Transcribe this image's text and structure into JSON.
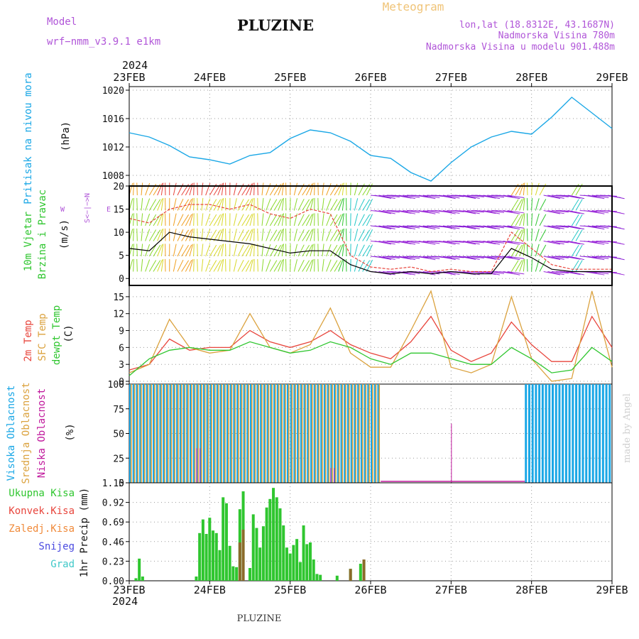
{
  "header": {
    "model_label": "Model",
    "model_name": "wrf−nmm_v3.9.1  e1km",
    "station": "PLUZINE",
    "product": "Meteogram",
    "lonlat": "lon,lat (18.8312E, 43.1687N)",
    "elevation": "Nadmorska Visina 780m",
    "model_elevation": "Nadmorska Visina u modelu 901.488m",
    "year": "2024",
    "footer_station": "PLUZINE",
    "credit": "made by Angel"
  },
  "colors": {
    "pressure": "#1aa7e6",
    "wind_mean": "#000000",
    "wind_gust": "#e8453c",
    "t2m": "#e8453c",
    "sfc": "#dba23e",
    "dewpt": "#2fc62f",
    "cloud_high": "#1aa7e6",
    "cloud_mid": "#dba23e",
    "cloud_low": "#c0189c",
    "precip_total": "#2fc62f",
    "precip_conv": "#8b6a2a",
    "wind_purple": "#8a1fd6",
    "wind_blue": "#2a5fe0"
  },
  "legend": {
    "pressure": "Pritisak na nivou mora",
    "pressure_unit": "(hPa)",
    "wind_l1": "10m Vjetar",
    "wind_l2": "Brzina i Pravac",
    "wind_unit": "(m/s)",
    "compass_ns": "S<−|−>N",
    "compass_e": "E",
    "compass_w": "W",
    "temp_l1": "2m Temp",
    "temp_l2": "SFC Temp",
    "temp_l3": "dewpt Temp",
    "temp_unit": "(C)",
    "cloud_l1": "Visoka Oblacnost",
    "cloud_l2": "Srednja Oblacnost",
    "cloud_l3": "Niska Oblacnost",
    "cloud_unit": "(%)",
    "precip_total": "Ukupna Kisa",
    "precip_conv": "Konvek.Kisa",
    "precip_frz": "Zaledj.Kisa",
    "precip_snow": "Snijeg",
    "precip_grad": "Grad",
    "precip_unit": "1hr Precip (mm)"
  },
  "chart_data": [
    {
      "type": "line",
      "id": "pressure",
      "ylabel": "Pritisak na nivou mora (hPa)",
      "ylim": [
        1006.5,
        1020.5
      ],
      "yticks": [
        1008,
        1012,
        1016,
        1020
      ],
      "xticks": [
        "23FEB",
        "24FEB",
        "25FEB",
        "26FEB",
        "27FEB",
        "28FEB",
        "29FEB"
      ],
      "x_hours": [
        0,
        6,
        12,
        18,
        24,
        30,
        36,
        42,
        48,
        54,
        60,
        66,
        72,
        78,
        84,
        90,
        96,
        102,
        108,
        114,
        120,
        126,
        132,
        138,
        144
      ],
      "series": [
        {
          "values": [
            1014.0,
            1013.4,
            1012.2,
            1010.6,
            1010.2,
            1009.6,
            1010.8,
            1011.2,
            1013.2,
            1014.4,
            1014.0,
            1012.8,
            1010.8,
            1010.4,
            1008.4,
            1007.2,
            1009.8,
            1012.0,
            1013.4,
            1014.2,
            1013.8,
            1016.2,
            1019.0,
            1016.8,
            1014.6
          ]
        }
      ],
      "grid": true
    },
    {
      "type": "line",
      "id": "wind",
      "ylabel": "10m Vjetar Brzina i Pravac (m/s)",
      "ylim": [
        -1.5,
        20
      ],
      "yticks": [
        0,
        5,
        10,
        15,
        20
      ],
      "x_hours": [
        0,
        6,
        12,
        18,
        24,
        30,
        36,
        42,
        48,
        54,
        60,
        66,
        72,
        78,
        84,
        90,
        96,
        102,
        108,
        114,
        120,
        126,
        132,
        138,
        144
      ],
      "series": [
        {
          "name": "mean",
          "values": [
            6.5,
            6,
            10,
            9,
            8.5,
            8,
            7.5,
            6.5,
            5.5,
            6,
            6,
            3,
            1.5,
            1,
            1.5,
            1,
            1.5,
            1,
            1,
            6.5,
            4.5,
            2,
            1.5,
            1.5,
            1.5
          ]
        },
        {
          "name": "gust",
          "values": [
            13,
            12,
            15,
            16,
            16,
            15,
            16,
            14,
            13,
            15,
            14,
            5,
            2.5,
            2,
            2.5,
            1.5,
            2,
            1.5,
            1.5,
            10,
            6.5,
            3,
            2,
            2,
            2
          ]
        }
      ],
      "grid": true
    },
    {
      "type": "line",
      "id": "temperature",
      "ylabel": "Temp (C)",
      "ylim": [
        -0.5,
        17
      ],
      "yticks": [
        0,
        3,
        6,
        9,
        12,
        15
      ],
      "x_hours": [
        0,
        6,
        12,
        18,
        24,
        30,
        36,
        42,
        48,
        54,
        60,
        66,
        72,
        78,
        84,
        90,
        96,
        102,
        108,
        114,
        120,
        126,
        132,
        138,
        144
      ],
      "series": [
        {
          "name": "2m Temp",
          "values": [
            2.0,
            3.0,
            7.5,
            5.5,
            6.0,
            6.0,
            9.0,
            7.0,
            6.0,
            7.0,
            9.0,
            6.5,
            5.0,
            4.0,
            7.0,
            11.5,
            5.5,
            3.5,
            5.0,
            10.5,
            6.5,
            3.5,
            3.5,
            11.5,
            6.0
          ]
        },
        {
          "name": "SFC Temp",
          "values": [
            1.5,
            3.0,
            11.0,
            6.0,
            5.0,
            5.5,
            12.0,
            6.0,
            5.0,
            6.5,
            13.0,
            5.0,
            2.5,
            2.5,
            9.0,
            16.0,
            2.5,
            1.5,
            3.0,
            15.0,
            4.0,
            0.0,
            0.5,
            16.0,
            2.5
          ]
        },
        {
          "name": "dewpt Temp",
          "values": [
            1.0,
            4.0,
            5.5,
            6.0,
            5.5,
            5.5,
            7.0,
            6.0,
            5.0,
            5.5,
            7.0,
            6.0,
            4.0,
            3.0,
            5.0,
            5.0,
            4.0,
            3.0,
            3.0,
            6.0,
            4.0,
            1.5,
            2.0,
            6.0,
            3.5
          ]
        }
      ],
      "grid": true
    },
    {
      "type": "bar",
      "id": "cloud",
      "ylabel": "Oblacnost (%)",
      "ylim": [
        0,
        100
      ],
      "yticks": [
        0,
        25,
        50,
        75,
        100
      ],
      "bars": [
        {
          "name": "Visoka Oblacnost",
          "segments": [
            [
              0,
              30,
              100
            ],
            [
              30,
              75,
              100
            ],
            [
              118,
              144,
              100
            ]
          ]
        },
        {
          "name": "Srednja Oblacnost",
          "segments": [
            [
              0,
              75,
              100
            ]
          ]
        },
        {
          "name": "Niska Oblacnost",
          "segments": [
            [
              20,
              22,
              35
            ],
            [
              60,
              62,
              15
            ],
            [
              96,
              97,
              60
            ]
          ]
        }
      ],
      "grid": true
    },
    {
      "type": "bar",
      "id": "precip",
      "ylabel": "1hr Precip (mm)",
      "ylim": [
        0,
        1.15
      ],
      "yticks": [
        0,
        0.23,
        0.46,
        0.69,
        0.92,
        1.15
      ],
      "x_hours": [
        2,
        3,
        4,
        20,
        21,
        22,
        23,
        24,
        25,
        26,
        27,
        28,
        29,
        30,
        31,
        32,
        33,
        34,
        36,
        37,
        38,
        39,
        40,
        41,
        42,
        43,
        44,
        45,
        46,
        47,
        48,
        49,
        50,
        51,
        52,
        53,
        54,
        55,
        56,
        57,
        62,
        66,
        69,
        70
      ],
      "total": [
        0.03,
        0.26,
        0.05,
        0.05,
        0.56,
        0.72,
        0.55,
        0.74,
        0.59,
        0.56,
        0.36,
        0.98,
        0.91,
        0.41,
        0.17,
        0.16,
        0.84,
        1.05,
        0.15,
        0.78,
        0.62,
        0.39,
        0.64,
        0.86,
        0.96,
        1.09,
        0.98,
        0.85,
        0.65,
        0.39,
        0.32,
        0.42,
        0.49,
        0.22,
        0.65,
        0.43,
        0.45,
        0.25,
        0.08,
        0.07,
        0.06,
        0.14,
        0.2,
        0.25
      ],
      "convective": [
        0,
        0,
        0,
        0,
        0,
        0,
        0,
        0,
        0,
        0,
        0,
        0,
        0,
        0,
        0,
        0,
        0.45,
        0.6,
        0,
        0,
        0,
        0,
        0,
        0,
        0,
        0,
        0,
        0,
        0,
        0,
        0,
        0,
        0,
        0,
        0,
        0,
        0,
        0,
        0,
        0,
        0,
        0.14,
        0,
        0.25
      ],
      "grid": true
    }
  ]
}
